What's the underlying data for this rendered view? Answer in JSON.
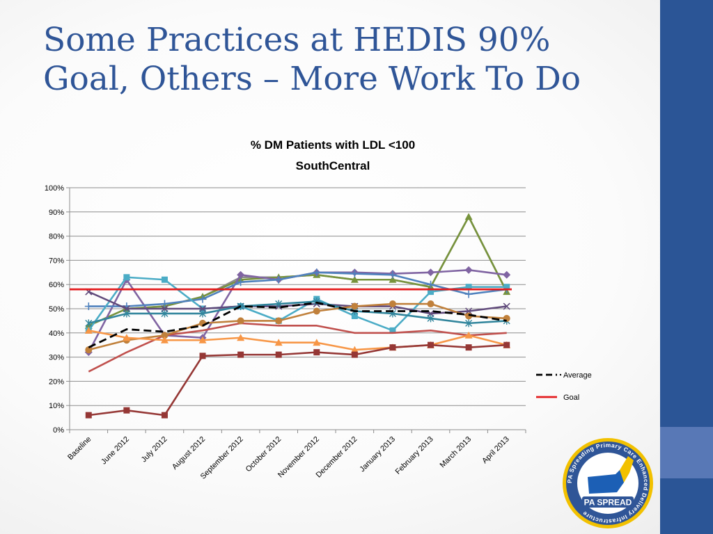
{
  "slide": {
    "title_line1": "Some Practices at HEDIS 90%",
    "title_line2": "Goal, Others – More Work To Do"
  },
  "colors": {
    "background": "#ffffff",
    "title": "#2f5597",
    "right_bar": "#2b5596",
    "right_bar_accent": "#5878b6"
  },
  "logo": {
    "ring_text": "PA Spreading Primary Care Enhanced Delivery Infrastructure",
    "name": "PA SPREAD"
  },
  "chart_data": {
    "type": "line",
    "title_line1": "% DM Patients with LDL <100",
    "title_line2": "SouthCentral",
    "categories": [
      "Baseline",
      "June 2012",
      "July 2012",
      "August 2012",
      "September 2012",
      "October 2012",
      "November 2012",
      "December 2012",
      "January 2013",
      "February 2013",
      "March 2013",
      "April 2013"
    ],
    "ylim": [
      0,
      1
    ],
    "yticks": [
      "0%",
      "10%",
      "20%",
      "30%",
      "40%",
      "50%",
      "60%",
      "70%",
      "80%",
      "90%",
      "100%"
    ],
    "grid": true,
    "legend_position": "right",
    "legend": [
      {
        "name": "Average",
        "color": "#000000",
        "dash": true
      },
      {
        "name": "Goal",
        "color": "#e31a1c",
        "dash": false
      }
    ],
    "series": [
      {
        "name": "",
        "color": "#8b8b8b",
        "marker": "none",
        "values": [
          0.43,
          0.5,
          0.51,
          0.55,
          0.63,
          0.63,
          0.64,
          0.62,
          0.62,
          0.59,
          0.88,
          0.57
        ]
      },
      {
        "name": "",
        "color": "#77933c",
        "marker": "triangle",
        "values": [
          0.43,
          0.5,
          0.51,
          0.55,
          0.62,
          0.63,
          0.64,
          0.62,
          0.62,
          0.59,
          0.88,
          0.57
        ]
      },
      {
        "name": "",
        "color": "#8064a2",
        "marker": "diamond",
        "values": [
          0.32,
          0.62,
          0.39,
          0.38,
          0.64,
          0.62,
          0.65,
          0.65,
          0.645,
          0.65,
          0.66,
          0.64
        ]
      },
      {
        "name": "",
        "color": "#4f81bd",
        "marker": "plus",
        "values": [
          0.51,
          0.51,
          0.52,
          0.54,
          0.61,
          0.62,
          0.65,
          0.645,
          0.64,
          0.6,
          0.56,
          0.58
        ]
      },
      {
        "name": "",
        "color": "#4bacc6",
        "marker": "square",
        "values": [
          0.41,
          0.63,
          0.62,
          0.5,
          0.51,
          0.45,
          0.54,
          0.47,
          0.41,
          0.57,
          0.59,
          0.59
        ]
      },
      {
        "name": "",
        "color": "#604a7b",
        "marker": "x",
        "values": [
          0.57,
          0.5,
          0.5,
          0.5,
          0.51,
          0.51,
          0.52,
          0.51,
          0.51,
          0.48,
          0.49,
          0.51
        ]
      },
      {
        "name": "",
        "color": "#31859c",
        "marker": "star",
        "values": [
          0.44,
          0.48,
          0.48,
          0.48,
          0.51,
          0.52,
          0.53,
          0.49,
          0.48,
          0.46,
          0.44,
          0.45
        ]
      },
      {
        "name": "",
        "color": "#c0504d",
        "marker": "none",
        "values": [
          0.24,
          0.32,
          0.39,
          0.41,
          0.44,
          0.43,
          0.43,
          0.4,
          0.4,
          0.41,
          0.39,
          0.4
        ]
      },
      {
        "name": "",
        "color": "#c0803b",
        "marker": "circle",
        "values": [
          0.33,
          0.37,
          0.39,
          0.44,
          0.45,
          0.45,
          0.49,
          0.51,
          0.52,
          0.52,
          0.47,
          0.46
        ]
      },
      {
        "name": "",
        "color": "#f79646",
        "marker": "triangle",
        "values": [
          0.41,
          0.38,
          0.37,
          0.37,
          0.38,
          0.36,
          0.36,
          0.33,
          0.34,
          0.35,
          0.39,
          0.35
        ]
      },
      {
        "name": "",
        "color": "#953735",
        "marker": "square",
        "values": [
          0.06,
          0.08,
          0.06,
          0.305,
          0.31,
          0.31,
          0.32,
          0.31,
          0.34,
          0.35,
          0.34,
          0.35
        ]
      },
      {
        "name": "Average",
        "color": "#000000",
        "marker": "none",
        "dash": true,
        "values": [
          0.34,
          0.415,
          0.405,
          0.43,
          0.51,
          0.505,
          0.525,
          0.49,
          0.49,
          0.49,
          0.475,
          0.45
        ]
      },
      {
        "name": "Goal",
        "color": "#e31a1c",
        "marker": "none",
        "values": [
          0.58,
          0.58,
          0.58,
          0.58,
          0.58,
          0.58,
          0.58,
          0.58,
          0.58,
          0.58,
          0.58,
          0.58
        ]
      }
    ]
  }
}
